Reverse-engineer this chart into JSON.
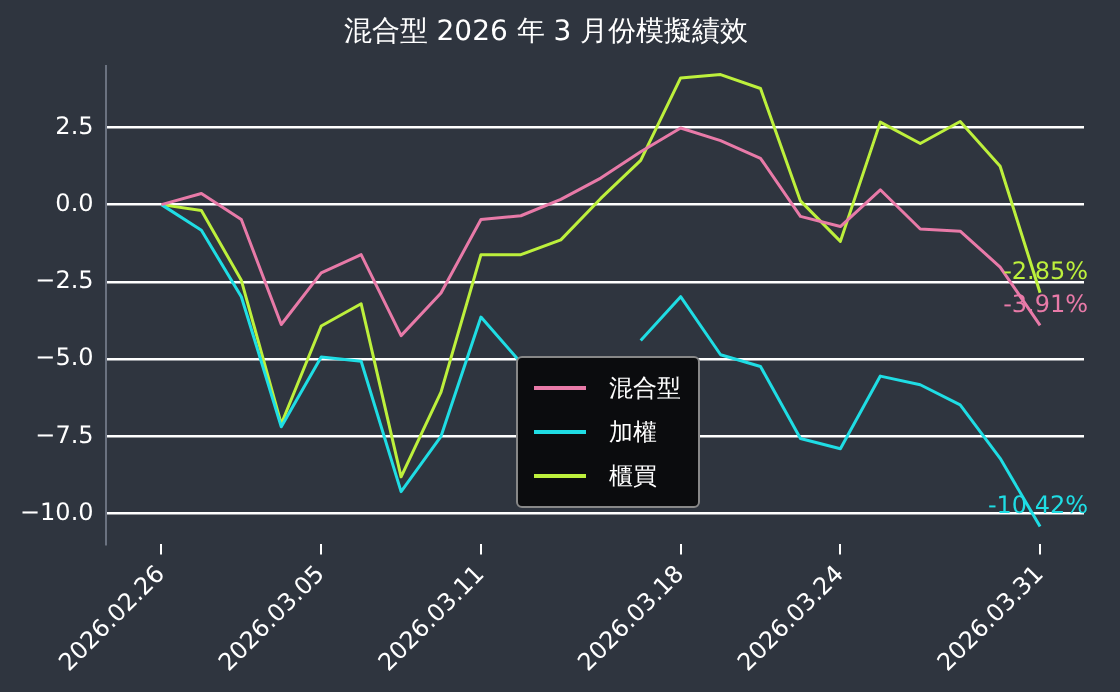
{
  "chart_data": {
    "type": "line",
    "title": "混合型 2026 年 3 月份模擬績效",
    "categories": [
      "2026.02.26",
      null,
      null,
      null,
      "2026.03.05",
      null,
      null,
      null,
      "2026.03.11",
      null,
      null,
      null,
      null,
      "2026.03.18",
      null,
      null,
      null,
      "2026.03.24",
      null,
      null,
      null,
      null,
      "2026.03.31"
    ],
    "series": [
      {
        "name": "混合型",
        "color": "#e87aa8",
        "values": [
          0,
          0.36,
          -0.48,
          -3.88,
          -2.21,
          -1.62,
          -4.24,
          -2.86,
          -0.48,
          -0.36,
          0.17,
          0.86,
          1.71,
          2.48,
          2.07,
          1.5,
          -0.38,
          -0.71,
          0.48,
          -0.79,
          -0.86,
          -2.02,
          -3.91
        ]
      },
      {
        "name": "加權",
        "color": "#1fdde4",
        "values": [
          0,
          -0.83,
          -2.98,
          -7.19,
          -4.93,
          -5.07,
          -9.29,
          -7.5,
          -3.64,
          -5.12,
          null,
          null,
          -4.4,
          -2.98,
          -4.86,
          -5.24,
          -7.57,
          -7.9,
          -5.55,
          -5.83,
          -6.48,
          -8.21,
          -10.42
        ]
      },
      {
        "name": "櫃買",
        "color": "#bdf03c",
        "values": [
          0,
          -0.19,
          -2.45,
          -7.1,
          -3.93,
          -3.21,
          -8.81,
          -6.07,
          -1.62,
          -1.62,
          -1.14,
          0.2,
          1.43,
          4.1,
          4.21,
          3.76,
          0.12,
          -1.19,
          2.67,
          1.98,
          2.69,
          1.24,
          -2.85
        ]
      }
    ],
    "ylim": [
      -11,
      4.5
    ],
    "yticks": [
      {
        "value": -10,
        "label": "−10.0"
      },
      {
        "value": -7.5,
        "label": "−7.5"
      },
      {
        "value": -5,
        "label": "−5.0"
      },
      {
        "value": -2.5,
        "label": "−2.5"
      },
      {
        "value": 0,
        "label": "0.0"
      },
      2.5
    ],
    "grid": "y",
    "legend": "bottom",
    "marker": "none",
    "line_style": "solid",
    "annotations": [
      {
        "text": "-2.85%",
        "x": "2026.03.31",
        "y": -2.85
      },
      {
        "text": "-3.91%",
        "x": "2026.03.31",
        "y": -3.91
      },
      {
        "text": "-10.42%",
        "x": "2026.03.31",
        "y": -10.42
      }
    ]
  }
}
